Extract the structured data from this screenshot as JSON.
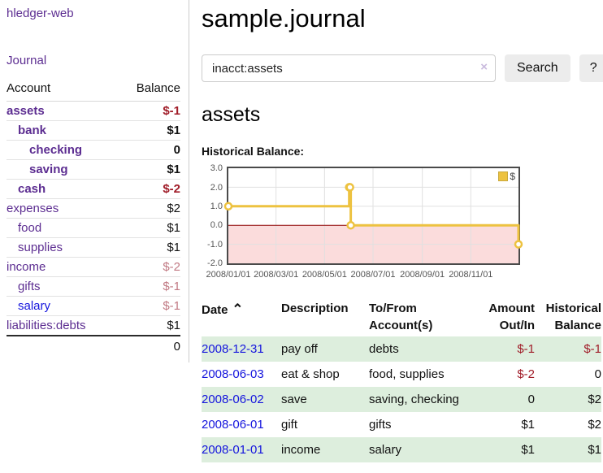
{
  "sidebar": {
    "brand": "hledger-web",
    "nav": {
      "journal": "Journal"
    },
    "table": {
      "headers": {
        "account": "Account",
        "balance": "Balance"
      },
      "accounts": [
        {
          "name": "assets",
          "depth": 1,
          "bold": true,
          "balance": "$-1",
          "negative": "strong"
        },
        {
          "name": "bank",
          "depth": 2,
          "bold": true,
          "balance": "$1",
          "negative": null
        },
        {
          "name": "checking",
          "depth": 3,
          "bold": true,
          "balance": "0",
          "negative": null
        },
        {
          "name": "saving",
          "depth": 3,
          "bold": true,
          "balance": "$1",
          "negative": null
        },
        {
          "name": "cash",
          "depth": 2,
          "bold": true,
          "balance": "$-2",
          "negative": "strong"
        },
        {
          "name": "expenses",
          "depth": 1,
          "bold": false,
          "balance": "$2",
          "negative": null
        },
        {
          "name": "food",
          "depth": 2,
          "bold": false,
          "balance": "$1",
          "negative": null
        },
        {
          "name": "supplies",
          "depth": 2,
          "bold": false,
          "balance": "$1",
          "negative": null
        },
        {
          "name": "income",
          "depth": 1,
          "bold": false,
          "balance": "$-2",
          "negative": "muted"
        },
        {
          "name": "gifts",
          "depth": 2,
          "bold": false,
          "balance": "$-1",
          "negative": "muted"
        },
        {
          "name": "salary",
          "depth": 2,
          "bold": false,
          "balance": "$-1",
          "negative": "muted",
          "link_style": "unvisited"
        },
        {
          "name": "liabilities:debts",
          "depth": 1,
          "bold": false,
          "balance": "$1",
          "negative": null
        }
      ],
      "total": "0"
    }
  },
  "main": {
    "title": "sample.journal",
    "search": {
      "value": "inacct:assets",
      "clear_label": "×",
      "button_label": "Search",
      "help_label": "?"
    },
    "account_heading": "assets",
    "chart_label": "Historical Balance:",
    "chart_data": {
      "type": "line",
      "style": "steps",
      "title": "Historical Balance",
      "series": [
        {
          "name": "$",
          "color": "#edc240",
          "points": [
            [
              "2008-01-01",
              1
            ],
            [
              "2008-06-01",
              2
            ],
            [
              "2008-06-02",
              2
            ],
            [
              "2008-06-03",
              0
            ],
            [
              "2008-12-31",
              -1
            ]
          ]
        }
      ],
      "xlim": [
        "2008-01-01",
        "2008-12-31"
      ],
      "ylim": [
        -2,
        3
      ],
      "x_ticks": [
        "2008/01/01",
        "2008/03/01",
        "2008/05/01",
        "2008/07/01",
        "2008/09/01",
        "2008/11/01"
      ],
      "y_ticks": [
        3,
        2,
        1,
        0,
        -1,
        -2
      ],
      "grid": true,
      "negative_region_color": "#fbdcdc",
      "zero_line_color": "#8c0000",
      "legend": {
        "label": "$",
        "position": "top-right"
      }
    },
    "register": {
      "headers": [
        {
          "label": "Date",
          "sort": "⌃",
          "align": "left"
        },
        {
          "label": "Description",
          "align": "left"
        },
        {
          "label": "To/From Account(s)",
          "align": "left"
        },
        {
          "label": "Amount Out/In",
          "align": "right"
        },
        {
          "label": "Historical Balance",
          "align": "right"
        }
      ],
      "rows": [
        {
          "date": "2008-12-31",
          "description": "pay off",
          "accounts": "debts",
          "amount": "$-1",
          "amount_negative": true,
          "balance": "$-1",
          "balance_negative": true
        },
        {
          "date": "2008-06-03",
          "description": "eat & shop",
          "accounts": "food, supplies",
          "amount": "$-2",
          "amount_negative": true,
          "balance": "0",
          "balance_negative": false
        },
        {
          "date": "2008-06-02",
          "description": "save",
          "accounts": "saving, checking",
          "amount": "0",
          "amount_negative": false,
          "balance": "$2",
          "balance_negative": false
        },
        {
          "date": "2008-06-01",
          "description": "gift",
          "accounts": "gifts",
          "amount": "$1",
          "amount_negative": false,
          "balance": "$2",
          "balance_negative": false
        },
        {
          "date": "2008-01-01",
          "description": "income",
          "accounts": "salary",
          "amount": "$1",
          "amount_negative": false,
          "balance": "$1",
          "balance_negative": false
        }
      ]
    }
  },
  "colors": {
    "link_visited": "#5c2d91",
    "link_unvisited": "#1414dd",
    "negative_strong": "#a01c28",
    "negative_muted": "#c17983",
    "row_highlight_green": "#ddeedd",
    "chart_line": "#edc240",
    "chart_negative_fill": "#fbdcdc",
    "chart_zero_line": "#8c0000",
    "button_bg": "#ececec"
  }
}
